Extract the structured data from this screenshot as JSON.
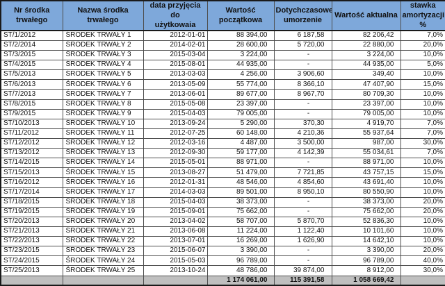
{
  "colors": {
    "header_bg": "#7EA8DA",
    "total_bg": "#BFBFBF",
    "grid_border": "#4d4d4d",
    "outer_border": "#1a1a1a"
  },
  "table": {
    "headers": [
      "Nr  środka trwałego",
      "Nazwa środka trwałego",
      "data przyjęcia do\nużytkowaia",
      "Wartość początkowa",
      "Dotychczasowe\numorzenie",
      "Wartość aktualna",
      "stawka\namortyzacji %"
    ],
    "rows": [
      [
        "ST/1/2012",
        "ŚRODEK TRWAŁY 1",
        "2012-01-01",
        "88 394,00",
        "6 187,58",
        "82 206,42",
        "7,0%"
      ],
      [
        "ST/2/2014",
        "ŚRODEK TRWAŁY 2",
        "2014-02-01",
        "28 600,00",
        "5 720,00",
        "22 880,00",
        "20,0%"
      ],
      [
        "ST/3/2015",
        "ŚRODEK TRWAŁY 3",
        "2015-03-04",
        "3 224,00",
        "-",
        "3 224,00",
        "10,0%"
      ],
      [
        "ST/4/2015",
        "ŚRODEK TRWAŁY 4",
        "2015-08-01",
        "44 935,00",
        "-",
        "44 935,00",
        "5,0%"
      ],
      [
        "ST/5/2013",
        "ŚRODEK TRWAŁY 5",
        "2013-03-03",
        "4 256,00",
        "3 906,60",
        "349,40",
        "10,0%"
      ],
      [
        "ST/6/2013",
        "ŚRODEK TRWAŁY 6",
        "2013-05-09",
        "55 774,00",
        "8 366,10",
        "47 407,90",
        "15,0%"
      ],
      [
        "ST/7/2013",
        "ŚRODEK TRWAŁY 7",
        "2013-06-01",
        "89 677,00",
        "8 967,70",
        "80 709,30",
        "10,0%"
      ],
      [
        "ST/8/2015",
        "ŚRODEK TRWAŁY 8",
        "2015-05-08",
        "23 397,00",
        "-",
        "23 397,00",
        "10,0%"
      ],
      [
        "ST/9/2015",
        "ŚRODEK TRWAŁY 9",
        "2015-04-03",
        "79 005,00",
        "-",
        "79 005,00",
        "10,0%"
      ],
      [
        "ST/10/2013",
        "ŚRODEK TRWAŁY 10",
        "2013-09-24",
        "5 290,00",
        "370,30",
        "4 919,70",
        "7,0%"
      ],
      [
        "ST/11/2012",
        "ŚRODEK TRWAŁY 11",
        "2012-07-25",
        "60 148,00",
        "4 210,36",
        "55 937,64",
        "7,0%"
      ],
      [
        "ST/12/2012",
        "ŚRODEK TRWAŁY 12",
        "2012-03-16",
        "4 487,00",
        "3 500,00",
        "987,00",
        "30,0%"
      ],
      [
        "ST/13/2012",
        "ŚRODEK TRWAŁY 13",
        "2012-09-30",
        "59 177,00",
        "4 142,39",
        "55 034,61",
        "7,0%"
      ],
      [
        "ST/14/2015",
        "ŚRODEK TRWAŁY 14",
        "2015-05-01",
        "88 971,00",
        "-",
        "88 971,00",
        "10,0%"
      ],
      [
        "ST/15/2013",
        "ŚRODEK TRWAŁY 15",
        "2013-08-27",
        "51 479,00",
        "7 721,85",
        "43 757,15",
        "15,0%"
      ],
      [
        "ST/16/2012",
        "ŚRODEK TRWAŁY 16",
        "2012-01-31",
        "48 546,00",
        "4 854,60",
        "43 691,40",
        "10,0%"
      ],
      [
        "ST/17/2014",
        "ŚRODEK TRWAŁY 17",
        "2014-03-03",
        "89 501,00",
        "8 950,10",
        "80 550,90",
        "10,0%"
      ],
      [
        "ST/18/2015",
        "ŚRODEK TRWAŁY 18",
        "2015-04-03",
        "38 373,00",
        "-",
        "38 373,00",
        "20,0%"
      ],
      [
        "ST/19/2015",
        "ŚRODEK TRWAŁY 19",
        "2015-09-01",
        "75 662,00",
        "-",
        "75 662,00",
        "20,0%"
      ],
      [
        "ST/20/2013",
        "ŚRODEK TRWAŁY 20",
        "2013-04-02",
        "58 707,00",
        "5 870,70",
        "52 836,30",
        "10,0%"
      ],
      [
        "ST/21/2013",
        "ŚRODEK TRWAŁY 21",
        "2013-06-08",
        "11 224,00",
        "1 122,40",
        "10 101,60",
        "10,0%"
      ],
      [
        "ST/22/2013",
        "ŚRODEK TRWAŁY 22",
        "2013-07-01",
        "16 269,00",
        "1 626,90",
        "14 642,10",
        "10,0%"
      ],
      [
        "ST/23/2015",
        "ŚRODEK TRWAŁY 23",
        "2015-06-07",
        "3 390,00",
        "-",
        "3 390,00",
        "20,0%"
      ],
      [
        "ST/24/2015",
        "ŚRODEK TRWAŁY 24",
        "2015-05-03",
        "96 789,00",
        "-",
        "96 789,00",
        "40,0%"
      ],
      [
        "ST/25/2013",
        "ŚRODEK TRWAŁY 25",
        "2013-10-24",
        "48 786,00",
        "39 874,00",
        "8 912,00",
        "30,0%"
      ]
    ],
    "totals": {
      "initial": "1 174 061,00",
      "depreciation": "115 391,58",
      "current": "1 058 669,42"
    }
  }
}
